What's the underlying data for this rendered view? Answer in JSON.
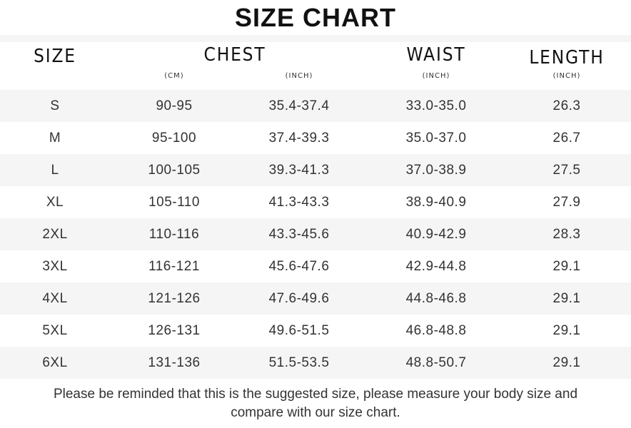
{
  "title": "SIZE CHART",
  "headers": {
    "size": "SIZE",
    "chest": "CHEST",
    "waist": "WAIST",
    "length": "LENGTH",
    "chest_cm_unit": "(CM)",
    "chest_inch_unit": "(INCH)",
    "waist_unit": "(INCH)",
    "length_unit": "(INCH)"
  },
  "rows": [
    {
      "size": "S",
      "chest_cm": "90-95",
      "chest_inch": "35.4-37.4",
      "waist": "33.0-35.0",
      "length": "26.3"
    },
    {
      "size": "M",
      "chest_cm": "95-100",
      "chest_inch": "37.4-39.3",
      "waist": "35.0-37.0",
      "length": "26.7"
    },
    {
      "size": "L",
      "chest_cm": "100-105",
      "chest_inch": "39.3-41.3",
      "waist": "37.0-38.9",
      "length": "27.5"
    },
    {
      "size": "XL",
      "chest_cm": "105-110",
      "chest_inch": "41.3-43.3",
      "waist": "38.9-40.9",
      "length": "27.9"
    },
    {
      "size": "2XL",
      "chest_cm": "110-116",
      "chest_inch": "43.3-45.6",
      "waist": "40.9-42.9",
      "length": "28.3"
    },
    {
      "size": "3XL",
      "chest_cm": "116-121",
      "chest_inch": "45.6-47.6",
      "waist": "42.9-44.8",
      "length": "29.1"
    },
    {
      "size": "4XL",
      "chest_cm": "121-126",
      "chest_inch": "47.6-49.6",
      "waist": "44.8-46.8",
      "length": "29.1"
    },
    {
      "size": "5XL",
      "chest_cm": "126-131",
      "chest_inch": "49.6-51.5",
      "waist": "46.8-48.8",
      "length": "29.1"
    },
    {
      "size": "6XL",
      "chest_cm": "131-136",
      "chest_inch": "51.5-53.5",
      "waist": "48.8-50.7",
      "length": "29.1"
    }
  ],
  "note": "Please be reminded that this is the suggested size, please measure your body size and compare with our size chart.",
  "colors": {
    "stripe": "#f5f5f5",
    "text": "#333333"
  }
}
